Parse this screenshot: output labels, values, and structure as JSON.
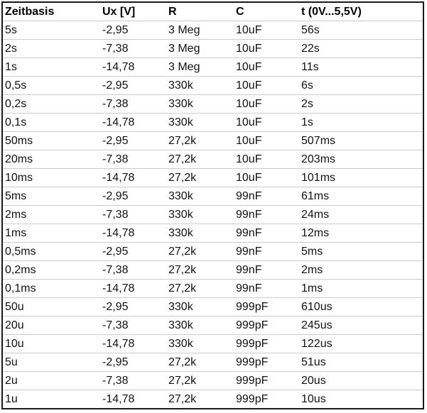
{
  "table": {
    "columns": [
      "Zeitbasis",
      "Ux [V]",
      "R",
      "C",
      "t (0V...5,5V)"
    ],
    "rows": [
      [
        "5s",
        "-2,95",
        "3 Meg",
        "10uF",
        "56s"
      ],
      [
        "2s",
        "-7,38",
        "3 Meg",
        "10uF",
        "22s"
      ],
      [
        "1s",
        "-14,78",
        "3 Meg",
        "10uF",
        "11s"
      ],
      [
        "0,5s",
        "-2,95",
        "330k",
        "10uF",
        "6s"
      ],
      [
        "0,2s",
        "-7,38",
        "330k",
        "10uF",
        "2s"
      ],
      [
        "0,1s",
        "-14,78",
        "330k",
        "10uF",
        "1s"
      ],
      [
        "50ms",
        "-2,95",
        "27,2k",
        "10uF",
        "507ms"
      ],
      [
        "20ms",
        "-7,38",
        "27,2k",
        "10uF",
        "203ms"
      ],
      [
        "10ms",
        "-14,78",
        "27,2k",
        "10uF",
        "101ms"
      ],
      [
        "5ms",
        "-2,95",
        "330k",
        "99nF",
        "61ms"
      ],
      [
        "2ms",
        "-7,38",
        "330k",
        "99nF",
        "24ms"
      ],
      [
        "1ms",
        "-14,78",
        "330k",
        "99nF",
        "12ms"
      ],
      [
        "0,5ms",
        "-2,95",
        "27,2k",
        "99nF",
        "5ms"
      ],
      [
        "0,2ms",
        "-7,38",
        "27,2k",
        "99nF",
        "2ms"
      ],
      [
        "0,1ms",
        "-14,78",
        "27,2k",
        "99nF",
        "1ms"
      ],
      [
        "50u",
        "-2,95",
        "330k",
        "999pF",
        "610us"
      ],
      [
        "20u",
        "-7,38",
        "330k",
        "999pF",
        "245us"
      ],
      [
        "10u",
        "-14,78",
        "330k",
        "999pF",
        "122us"
      ],
      [
        "5u",
        "-2,95",
        "27,2k",
        "999pF",
        "51us"
      ],
      [
        "2u",
        "-7,38",
        "27,2k",
        "999pF",
        "20us"
      ],
      [
        "1u",
        "-14,78",
        "27,2k",
        "999pF",
        "10us"
      ]
    ]
  },
  "colors": {
    "outer_border": "#1a1a1a",
    "row_separator": "#cbcbcb",
    "text": "#111111"
  }
}
